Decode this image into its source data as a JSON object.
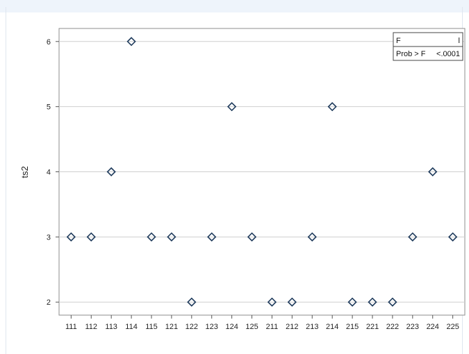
{
  "chart_data": {
    "type": "scatter",
    "title": "",
    "xlabel": "",
    "ylabel": "ts2",
    "categories": [
      "111",
      "112",
      "113",
      "114",
      "115",
      "121",
      "122",
      "123",
      "124",
      "125",
      "211",
      "212",
      "213",
      "214",
      "215",
      "221",
      "222",
      "223",
      "224",
      "225"
    ],
    "values": [
      3,
      3,
      4,
      6,
      3,
      3,
      2,
      3,
      5,
      3,
      2,
      2,
      3,
      5,
      2,
      2,
      2,
      3,
      4,
      3
    ],
    "ylim": [
      1.8,
      6.2
    ],
    "yticks": [
      2,
      3,
      4,
      5,
      6
    ],
    "grid": "horizontal",
    "marker": "diamond",
    "marker_color": "#1f3b5c",
    "gridline_color": "#cfcfcf"
  },
  "stats_box": {
    "row1_label": "F",
    "row1_value": "l",
    "row2_label": "Prob > F",
    "row2_value": "<.0001"
  }
}
